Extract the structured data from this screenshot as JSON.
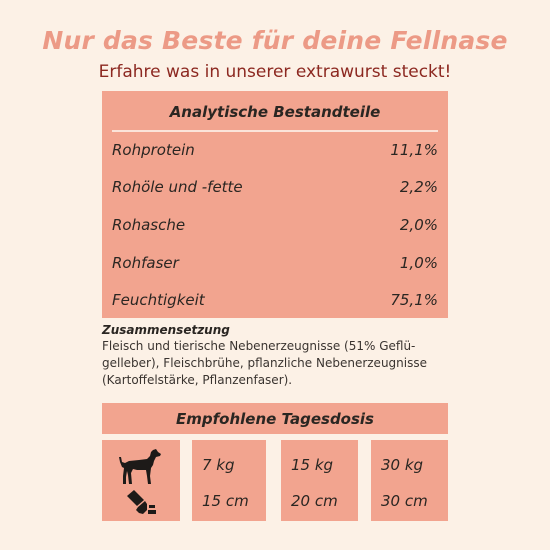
{
  "header": {
    "title": "Nur das Beste für deine Fellnase",
    "subtitle": "Erfahre was in unserer extrawurst steckt!"
  },
  "analysis": {
    "heading": "Analytische Bestandteile",
    "rows": [
      {
        "label": "Rohprotein",
        "value": "11,1%"
      },
      {
        "label": "Rohöle und -fette",
        "value": "2,2%"
      },
      {
        "label": "Rohasche",
        "value": "2,0%"
      },
      {
        "label": "Rohfaser",
        "value": "1,0%"
      },
      {
        "label": "Feuchtigkeit",
        "value": "75,1%"
      }
    ]
  },
  "composition": {
    "heading": "Zusammensetzung",
    "lines": [
      "Fleisch und tierische Nebenerzeugnisse (51% Geflü-",
      "gelleber), Fleischbrühe, pflanzliche Nebenerzeugnisse",
      "(Kartoffelstärke, Pflanzenfaser)."
    ]
  },
  "dosage": {
    "heading": "Empfohlene Tagesdosis",
    "icons": [
      "dog-icon",
      "sausage-slice-icon"
    ],
    "columns": [
      {
        "weight": "7 kg",
        "length": "15 cm"
      },
      {
        "weight": "15 kg",
        "length": "20 cm"
      },
      {
        "weight": "30 kg",
        "length": "30 cm"
      }
    ]
  },
  "colors": {
    "background": "#fcf1e6",
    "title": "#ec9a86",
    "subtitle": "#8c2820",
    "panel": "#f2a48f"
  }
}
